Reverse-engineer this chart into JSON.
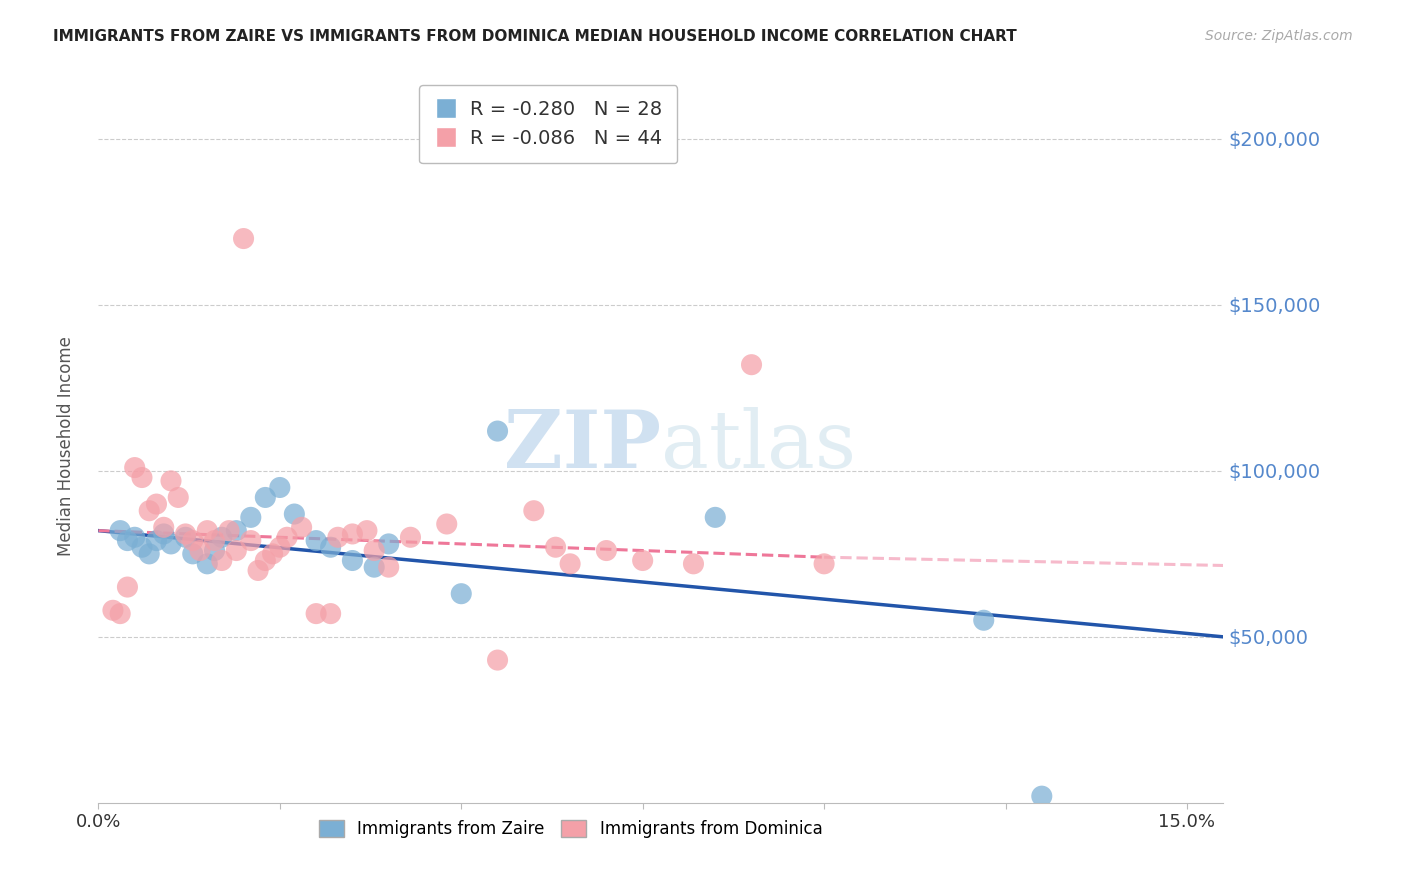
{
  "title": "IMMIGRANTS FROM ZAIRE VS IMMIGRANTS FROM DOMINICA MEDIAN HOUSEHOLD INCOME CORRELATION CHART",
  "source": "Source: ZipAtlas.com",
  "ylabel": "Median Household Income",
  "xlim": [
    0.0,
    0.155
  ],
  "ylim": [
    0,
    215000
  ],
  "yticks": [
    50000,
    100000,
    150000,
    200000
  ],
  "ytick_labels": [
    "$50,000",
    "$100,000",
    "$150,000",
    "$200,000"
  ],
  "xticks": [
    0.0,
    0.025,
    0.05,
    0.075,
    0.1,
    0.125,
    0.15
  ],
  "xtick_labels": [
    "0.0%",
    "",
    "",
    "",
    "",
    "",
    "15.0%"
  ],
  "zaire_color": "#7BAFD4",
  "dominica_color": "#F4A0A8",
  "zaire_trend_color": "#2255AA",
  "dominica_trend_color": "#EE7799",
  "zaire_R": -0.28,
  "zaire_N": 28,
  "dominica_R": -0.086,
  "dominica_N": 44,
  "zaire_scatter_x": [
    0.003,
    0.004,
    0.005,
    0.006,
    0.007,
    0.008,
    0.009,
    0.01,
    0.012,
    0.013,
    0.015,
    0.016,
    0.017,
    0.019,
    0.021,
    0.023,
    0.025,
    0.027,
    0.03,
    0.032,
    0.035,
    0.038,
    0.04,
    0.05,
    0.055,
    0.085,
    0.122,
    0.13
  ],
  "zaire_scatter_y": [
    82000,
    79000,
    80000,
    77000,
    75000,
    79000,
    81000,
    78000,
    80000,
    75000,
    72000,
    76000,
    80000,
    82000,
    86000,
    92000,
    95000,
    87000,
    79000,
    77000,
    73000,
    71000,
    78000,
    63000,
    112000,
    86000,
    55000,
    2000
  ],
  "dominica_scatter_x": [
    0.002,
    0.003,
    0.004,
    0.005,
    0.006,
    0.007,
    0.008,
    0.009,
    0.01,
    0.011,
    0.012,
    0.013,
    0.014,
    0.015,
    0.016,
    0.017,
    0.018,
    0.019,
    0.02,
    0.021,
    0.022,
    0.023,
    0.024,
    0.025,
    0.026,
    0.028,
    0.03,
    0.032,
    0.033,
    0.035,
    0.037,
    0.038,
    0.04,
    0.043,
    0.048,
    0.055,
    0.06,
    0.063,
    0.065,
    0.07,
    0.075,
    0.082,
    0.09,
    0.1
  ],
  "dominica_scatter_y": [
    58000,
    57000,
    65000,
    101000,
    98000,
    88000,
    90000,
    83000,
    97000,
    92000,
    81000,
    79000,
    76000,
    82000,
    79000,
    73000,
    82000,
    76000,
    170000,
    79000,
    70000,
    73000,
    75000,
    77000,
    80000,
    83000,
    57000,
    57000,
    80000,
    81000,
    82000,
    76000,
    71000,
    80000,
    84000,
    43000,
    88000,
    77000,
    72000,
    76000,
    73000,
    72000,
    132000,
    72000
  ],
  "background_color": "#ffffff",
  "grid_color": "#cccccc",
  "title_color": "#222222",
  "axis_label_color": "#555555",
  "ytick_color": "#5588CC"
}
